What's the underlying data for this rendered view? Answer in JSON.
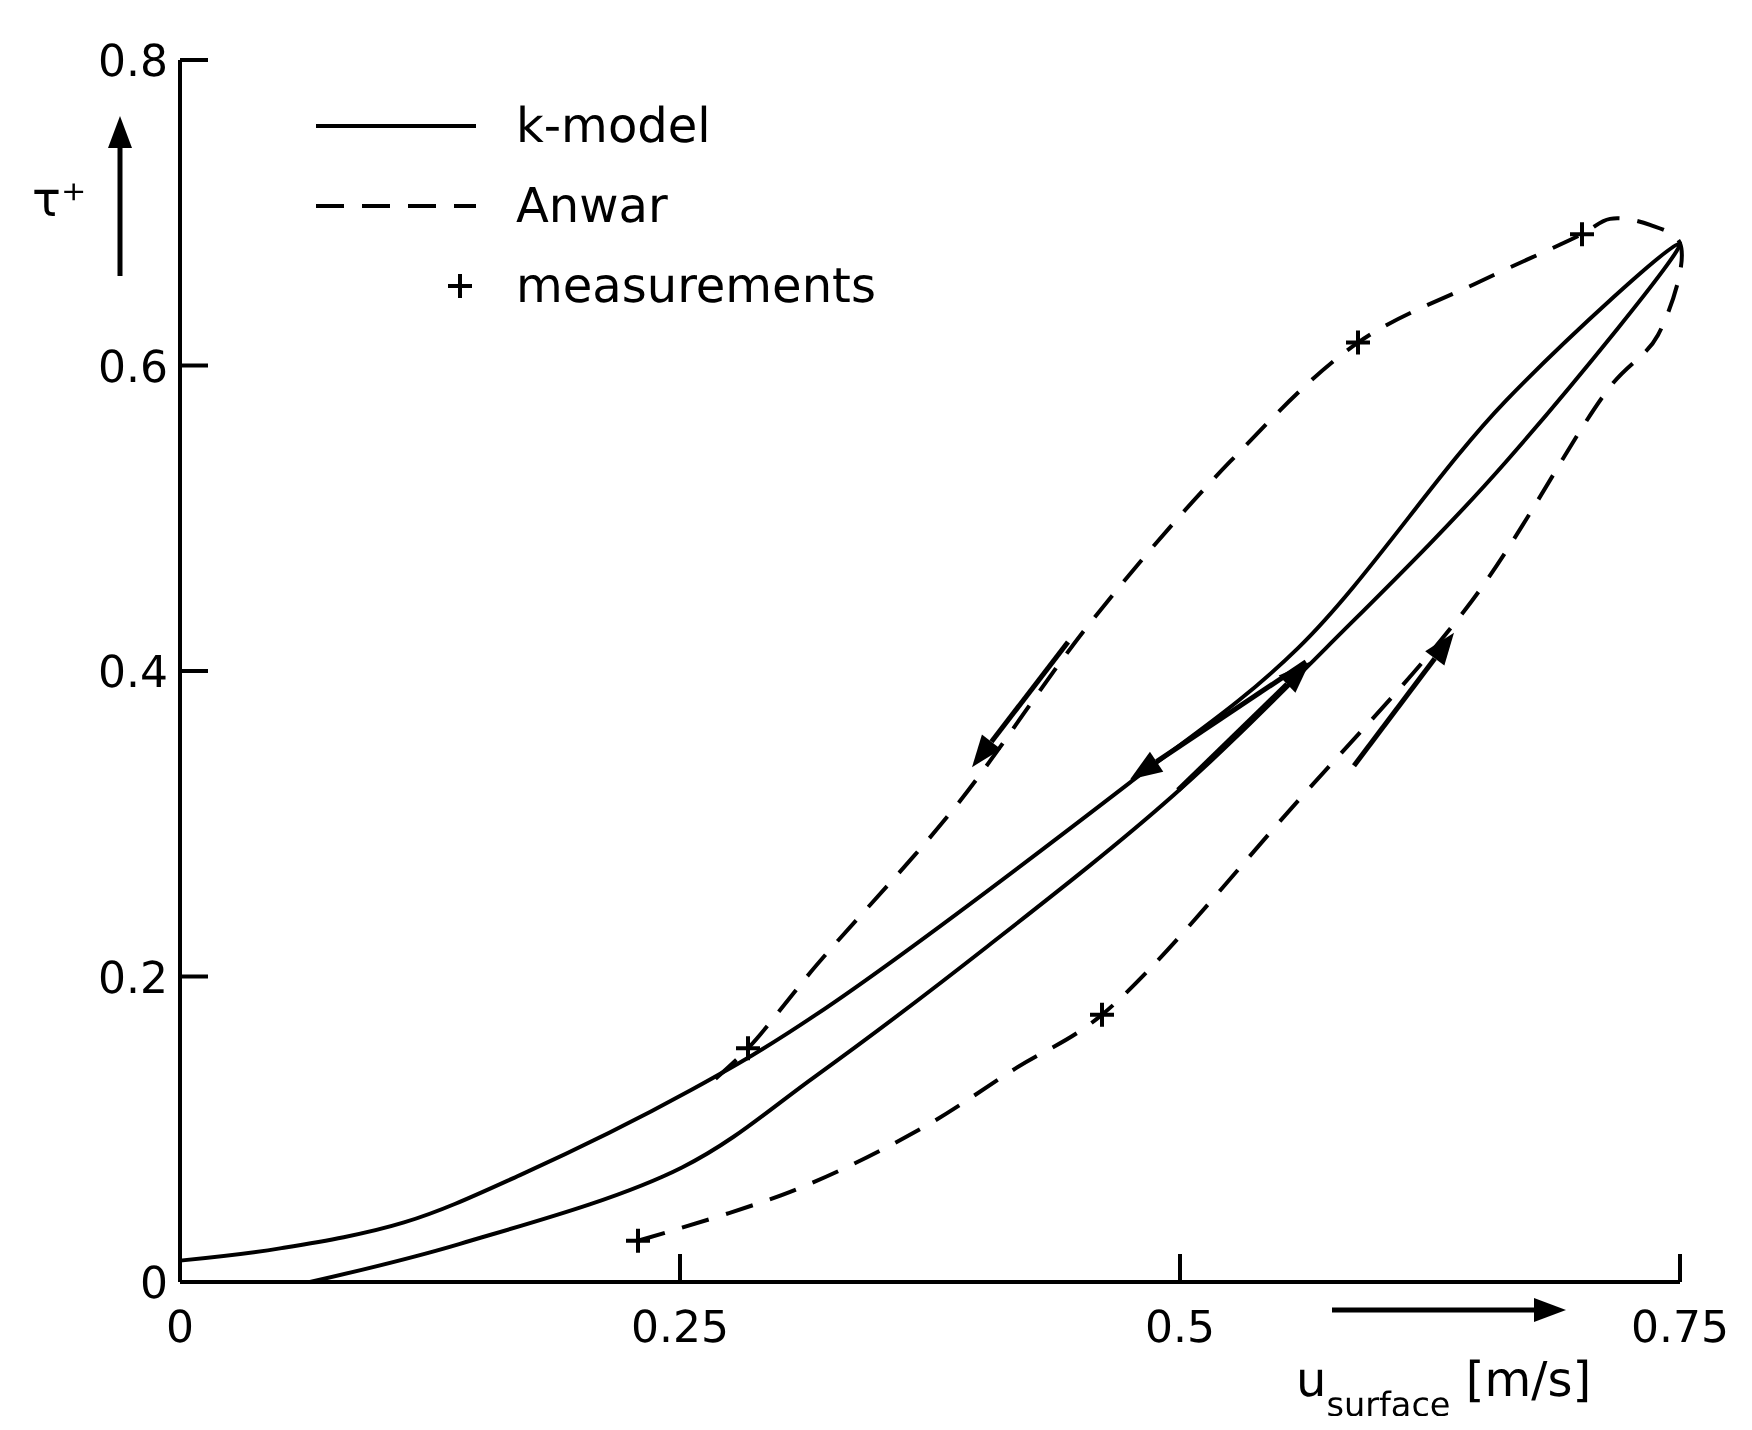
{
  "chart_data": {
    "type": "line",
    "xlabel": "u$_{surface}$ [m/s]",
    "ylabel": "τ⁺",
    "xlim": [
      0,
      0.75
    ],
    "ylim": [
      0,
      0.8
    ],
    "xticks": [
      0,
      0.25,
      0.5,
      0.75
    ],
    "yticks": [
      0,
      0.2,
      0.4,
      0.6,
      {
        "value": 0.8,
        "label": "0.8"
      }
    ],
    "grid": false,
    "legend": "top left",
    "series": [
      {
        "name": "k-model",
        "color": "#000000",
        "line_style": "solid",
        "x": [
          0.065,
          0.14,
          0.251,
          0.318,
          0.404,
          0.497,
          0.573,
          0.663,
          0.75,
          0.663,
          0.559,
          0.473,
          0.318,
          0.256,
          0.17,
          0.112,
          0.05,
          0
        ],
        "values": [
          0,
          0.025,
          0.075,
          0.135,
          0.22,
          0.319,
          0.415,
          0.537,
          0.68,
          0.577,
          0.415,
          0.325,
          0.175,
          0.126,
          0.07,
          0.039,
          0.022,
          0.014
        ]
      },
      {
        "name": "Anwar",
        "color": "#000000",
        "line_style": "dashed",
        "x": [
          0.229,
          0.307,
          0.37,
          0.418,
          0.461,
          0.559,
          0.646,
          0.715,
          0.739,
          0.75,
          0.735,
          0.715,
          0.701,
          0.65,
          0.589,
          0.525,
          0.456,
          0.387,
          0.318,
          0.284,
          0.265
        ],
        "values": [
          0.027,
          0.06,
          0.1,
          0.14,
          0.175,
          0.315,
          0.446,
          0.586,
          0.62,
          0.68,
          0.692,
          0.696,
          0.686,
          0.655,
          0.615,
          0.537,
          0.433,
          0.31,
          0.207,
          0.153,
          0.13
        ]
      },
      {
        "name": "measurements",
        "type": "scatter",
        "color": "#000000",
        "marker": "cross",
        "x": [
          0.229,
          0.461,
          0.284,
          0.589,
          0.701
        ],
        "values": [
          0.027,
          0.175,
          0.153,
          0.615,
          0.686
        ]
      }
    ]
  }
}
